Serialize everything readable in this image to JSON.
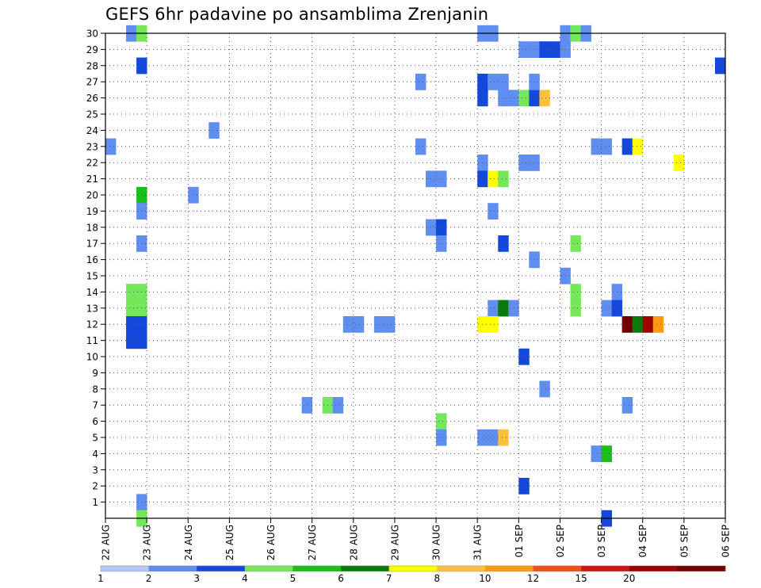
{
  "chart_data": {
    "type": "heatmap",
    "title": "GEFS 6hr padavine po ansamblima Zrenjanin",
    "y_ticks": [
      "1",
      "2",
      "3",
      "4",
      "5",
      "6",
      "7",
      "8",
      "9",
      "10",
      "11",
      "12",
      "13",
      "14",
      "15",
      "16",
      "17",
      "18",
      "19",
      "20",
      "21",
      "22",
      "23",
      "24",
      "25",
      "26",
      "27",
      "28",
      "29",
      "30"
    ],
    "x_ticks": [
      "22 AUG",
      "23 AUG",
      "24 AUG",
      "25 AUG",
      "26 AUG",
      "27 AUG",
      "28 AUG",
      "29 AUG",
      "30 AUG",
      "31 AUG",
      "01 SEP",
      "02 SEP",
      "03 SEP",
      "04 SEP",
      "05 SEP",
      "06 SEP"
    ],
    "x_step_hours": 6,
    "grid": true,
    "legend": {
      "position": "bottom",
      "labels": [
        "1",
        "2",
        "3",
        "4",
        "5",
        "6",
        "7",
        "8",
        "10",
        "12",
        "15",
        "20"
      ],
      "colors": [
        "#b3c8f5",
        "#5f8ef0",
        "#1448dc",
        "#74e85a",
        "#18c018",
        "#0a7a0a",
        "#ffff00",
        "#ffc040",
        "#ff9a10",
        "#f05018",
        "#d01410",
        "#a00000",
        "#700000"
      ]
    },
    "cells": [
      {
        "x": "22 AUG 12",
        "m": 30,
        "c": 1
      },
      {
        "x": "22 AUG 18",
        "m": 30,
        "c": 3
      },
      {
        "x": "22 AUG 18",
        "m": 28,
        "c": 2
      },
      {
        "x": "22 AUG 00",
        "m": 23,
        "c": 1
      },
      {
        "x": "22 AUG 18",
        "m": 20,
        "c": 4
      },
      {
        "x": "22 AUG 18",
        "m": 19,
        "c": 1
      },
      {
        "x": "22 AUG 18",
        "m": 17,
        "c": 1
      },
      {
        "x": "22 AUG 12",
        "m": 14,
        "c": 3
      },
      {
        "x": "22 AUG 18",
        "m": 14,
        "c": 3
      },
      {
        "x": "22 AUG 12",
        "m": 13,
        "c": 3
      },
      {
        "x": "22 AUG 18",
        "m": 13,
        "c": 3
      },
      {
        "x": "22 AUG 12",
        "m": 12,
        "c": 2
      },
      {
        "x": "22 AUG 18",
        "m": 12,
        "c": 2
      },
      {
        "x": "22 AUG 12",
        "m": 11,
        "c": 2
      },
      {
        "x": "22 AUG 18",
        "m": 11,
        "c": 2
      },
      {
        "x": "22 AUG 18",
        "m": 1,
        "c": 1
      },
      {
        "x": "22 AUG 18",
        "m": 0,
        "c": 3
      },
      {
        "x": "24 AUG 12",
        "m": 24,
        "c": 1
      },
      {
        "x": "24 AUG 00",
        "m": 20,
        "c": 1
      },
      {
        "x": "26 AUG 18",
        "m": 7,
        "c": 1
      },
      {
        "x": "27 AUG 06",
        "m": 7,
        "c": 3
      },
      {
        "x": "27 AUG 12",
        "m": 7,
        "c": 1
      },
      {
        "x": "27 AUG 18",
        "m": 12,
        "c": 1
      },
      {
        "x": "28 AUG 00",
        "m": 12,
        "c": 1
      },
      {
        "x": "28 AUG 12",
        "m": 12,
        "c": 1
      },
      {
        "x": "28 AUG 18",
        "m": 12,
        "c": 1
      },
      {
        "x": "29 AUG 12",
        "m": 27,
        "c": 1
      },
      {
        "x": "29 AUG 12",
        "m": 23,
        "c": 1
      },
      {
        "x": "29 AUG 18",
        "m": 21,
        "c": 1
      },
      {
        "x": "30 AUG 00",
        "m": 21,
        "c": 1
      },
      {
        "x": "29 AUG 18",
        "m": 18,
        "c": 1
      },
      {
        "x": "30 AUG 00",
        "m": 18,
        "c": 2
      },
      {
        "x": "30 AUG 00",
        "m": 17,
        "c": 1
      },
      {
        "x": "30 AUG 00",
        "m": 6,
        "c": 3
      },
      {
        "x": "30 AUG 00",
        "m": 5,
        "c": 1
      },
      {
        "x": "31 AUG 00",
        "m": 30,
        "c": 1
      },
      {
        "x": "31 AUG 06",
        "m": 30,
        "c": 1
      },
      {
        "x": "31 AUG 00",
        "m": 27,
        "c": 2
      },
      {
        "x": "31 AUG 06",
        "m": 27,
        "c": 1
      },
      {
        "x": "31 AUG 12",
        "m": 27,
        "c": 1
      },
      {
        "x": "31 AUG 00",
        "m": 26,
        "c": 2
      },
      {
        "x": "31 AUG 12",
        "m": 26,
        "c": 1
      },
      {
        "x": "31 AUG 18",
        "m": 26,
        "c": 1
      },
      {
        "x": "01 SEP 00",
        "m": 26,
        "c": 3
      },
      {
        "x": "01 SEP 06",
        "m": 26,
        "c": 2
      },
      {
        "x": "01 SEP 12",
        "m": 26,
        "c": 7
      },
      {
        "x": "31 AUG 00",
        "m": 22,
        "c": 1
      },
      {
        "x": "31 AUG 00",
        "m": 21,
        "c": 2
      },
      {
        "x": "31 AUG 06",
        "m": 21,
        "c": 6
      },
      {
        "x": "31 AUG 12",
        "m": 21,
        "c": 3
      },
      {
        "x": "31 AUG 06",
        "m": 19,
        "c": 1
      },
      {
        "x": "31 AUG 12",
        "m": 17,
        "c": 2
      },
      {
        "x": "31 AUG 06",
        "m": 13,
        "c": 1
      },
      {
        "x": "31 AUG 12",
        "m": 13,
        "c": 5
      },
      {
        "x": "31 AUG 18",
        "m": 13,
        "c": 1
      },
      {
        "x": "31 AUG 00",
        "m": 12,
        "c": 6
      },
      {
        "x": "31 AUG 06",
        "m": 12,
        "c": 6
      },
      {
        "x": "31 AUG 00",
        "m": 5,
        "c": 1
      },
      {
        "x": "31 AUG 06",
        "m": 5,
        "c": 1
      },
      {
        "x": "31 AUG 12",
        "m": 5,
        "c": 7
      },
      {
        "x": "01 SEP 00",
        "m": 29,
        "c": 1
      },
      {
        "x": "01 SEP 06",
        "m": 29,
        "c": 1
      },
      {
        "x": "01 SEP 12",
        "m": 29,
        "c": 2
      },
      {
        "x": "01 SEP 18",
        "m": 29,
        "c": 2
      },
      {
        "x": "02 SEP 00",
        "m": 29,
        "c": 1
      },
      {
        "x": "01 SEP 06",
        "m": 27,
        "c": 1
      },
      {
        "x": "01 SEP 00",
        "m": 22,
        "c": 1
      },
      {
        "x": "01 SEP 06",
        "m": 22,
        "c": 1
      },
      {
        "x": "01 SEP 06",
        "m": 16,
        "c": 1
      },
      {
        "x": "01 SEP 00",
        "m": 10,
        "c": 2
      },
      {
        "x": "01 SEP 12",
        "m": 8,
        "c": 1
      },
      {
        "x": "01 SEP 00",
        "m": 2,
        "c": 2
      },
      {
        "x": "02 SEP 00",
        "m": 30,
        "c": 1
      },
      {
        "x": "02 SEP 06",
        "m": 30,
        "c": 3
      },
      {
        "x": "02 SEP 12",
        "m": 30,
        "c": 1
      },
      {
        "x": "02 SEP 06",
        "m": 17,
        "c": 3
      },
      {
        "x": "02 SEP 00",
        "m": 15,
        "c": 1
      },
      {
        "x": "02 SEP 06",
        "m": 14,
        "c": 3
      },
      {
        "x": "02 SEP 06",
        "m": 13,
        "c": 3
      },
      {
        "x": "02 SEP 18",
        "m": 23,
        "c": 1
      },
      {
        "x": "03 SEP 00",
        "m": 23,
        "c": 1
      },
      {
        "x": "02 SEP 18",
        "m": 4,
        "c": 1
      },
      {
        "x": "03 SEP 00",
        "m": 4,
        "c": 4
      },
      {
        "x": "03 SEP 00",
        "m": 13,
        "c": 1
      },
      {
        "x": "03 SEP 06",
        "m": 14,
        "c": 1
      },
      {
        "x": "03 SEP 06",
        "m": 13,
        "c": 2
      },
      {
        "x": "03 SEP 00",
        "m": 0,
        "c": 2
      },
      {
        "x": "03 SEP 12",
        "m": 7,
        "c": 1
      },
      {
        "x": "03 SEP 12",
        "m": 23,
        "c": 2
      },
      {
        "x": "03 SEP 18",
        "m": 23,
        "c": 6
      },
      {
        "x": "03 SEP 12",
        "m": 12,
        "c": 12
      },
      {
        "x": "03 SEP 18",
        "m": 12,
        "c": 5
      },
      {
        "x": "04 SEP 00",
        "m": 12,
        "c": 11
      },
      {
        "x": "04 SEP 06",
        "m": 12,
        "c": 8
      },
      {
        "x": "04 SEP 18",
        "m": 22,
        "c": 6
      },
      {
        "x": "05 SEP 18",
        "m": 28,
        "c": 2
      }
    ]
  }
}
